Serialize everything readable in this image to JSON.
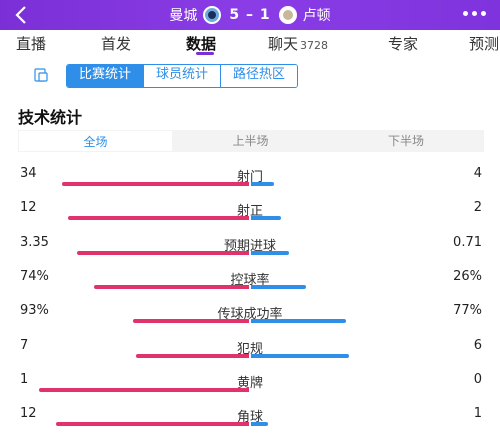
{
  "header": {
    "home_team": "曼城",
    "away_team": "卢顿",
    "score": "5 – 1"
  },
  "nav": {
    "tabs": [
      {
        "label": "直播",
        "count": ""
      },
      {
        "label": "首发",
        "count": ""
      },
      {
        "label": "数据",
        "count": ""
      },
      {
        "label": "聊天",
        "count": "3728"
      },
      {
        "label": "专家",
        "count": ""
      },
      {
        "label": "预测",
        "count": ""
      }
    ],
    "active": "数据"
  },
  "segments": {
    "items": [
      "比赛统计",
      "球员统计",
      "路径热区"
    ],
    "active": "比赛统计"
  },
  "section_title": "技术统计",
  "period_tabs": {
    "items": [
      "全场",
      "上半场",
      "下半场"
    ],
    "active": "全场"
  },
  "colors": {
    "accent_purple": "#7b2fd6",
    "home_bar": "#e0336b",
    "away_bar": "#2f8fe8"
  },
  "stats": [
    {
      "label": "射门",
      "home": "34",
      "away": "4",
      "home_share": 0.89,
      "away_share": 0.11
    },
    {
      "label": "射正",
      "home": "12",
      "away": "2",
      "home_share": 0.86,
      "away_share": 0.14
    },
    {
      "label": "预期进球",
      "home": "3.35",
      "away": "0.71",
      "home_share": 0.82,
      "away_share": 0.18
    },
    {
      "label": "控球率",
      "home": "74%",
      "away": "26%",
      "home_share": 0.74,
      "away_share": 0.26
    },
    {
      "label": "传球成功率",
      "home": "93%",
      "away": "77%",
      "home_share": 0.55,
      "away_share": 0.45
    },
    {
      "label": "犯规",
      "home": "7",
      "away": "6",
      "home_share": 0.54,
      "away_share": 0.46
    },
    {
      "label": "黄牌",
      "home": "1",
      "away": "0",
      "home_share": 1.0,
      "away_share": 0.0
    },
    {
      "label": "角球",
      "home": "12",
      "away": "1",
      "home_share": 0.92,
      "away_share": 0.08
    }
  ]
}
